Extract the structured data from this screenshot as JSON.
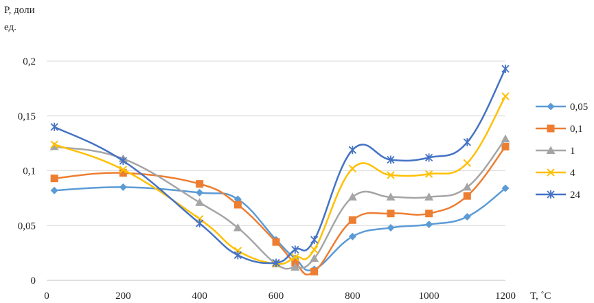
{
  "chart_data": {
    "type": "line",
    "title": "",
    "ylabel_line1": "P, доли",
    "ylabel_line2": "ед.",
    "xlabel": "T, ˚C",
    "xlim": [
      0,
      1200
    ],
    "ylim": [
      0,
      0.2
    ],
    "xticks": [
      0,
      200,
      400,
      600,
      800,
      1000,
      1200
    ],
    "xtick_labels": [
      "0",
      "200",
      "400",
      "600",
      "800",
      "1000",
      "1200"
    ],
    "yticks": [
      0,
      0.05,
      0.1,
      0.15,
      0.2
    ],
    "ytick_labels": [
      "0",
      "0,05",
      "0,1",
      "0,15",
      "0,2"
    ],
    "grid": "horizontal",
    "legend_position": "right",
    "series": [
      {
        "name": "0,05",
        "color": "#5B9BD5",
        "marker": "diamond",
        "x": [
          20,
          200,
          400,
          500,
          600,
          650,
          700,
          800,
          900,
          1000,
          1100,
          1200
        ],
        "y": [
          0.082,
          0.085,
          0.08,
          0.074,
          0.037,
          0.02,
          0.01,
          0.04,
          0.048,
          0.051,
          0.058,
          0.084
        ]
      },
      {
        "name": "0,1",
        "color": "#ED7D31",
        "marker": "square",
        "x": [
          20,
          200,
          400,
          500,
          600,
          650,
          700,
          800,
          900,
          1000,
          1100,
          1200
        ],
        "y": [
          0.093,
          0.098,
          0.088,
          0.069,
          0.035,
          0.016,
          0.008,
          0.055,
          0.061,
          0.061,
          0.077,
          0.122
        ]
      },
      {
        "name": "1",
        "color": "#A5A5A5",
        "marker": "triangle",
        "x": [
          20,
          200,
          400,
          500,
          600,
          650,
          700,
          800,
          900,
          1000,
          1100,
          1200
        ],
        "y": [
          0.122,
          0.111,
          0.071,
          0.048,
          0.015,
          0.012,
          0.02,
          0.076,
          0.076,
          0.076,
          0.085,
          0.129
        ]
      },
      {
        "name": "4",
        "color": "#FFC000",
        "marker": "x",
        "x": [
          20,
          200,
          400,
          500,
          600,
          650,
          700,
          800,
          900,
          1000,
          1100,
          1200
        ],
        "y": [
          0.124,
          0.101,
          0.056,
          0.027,
          0.015,
          0.021,
          0.028,
          0.102,
          0.096,
          0.097,
          0.107,
          0.168
        ]
      },
      {
        "name": "24",
        "color": "#4472C4",
        "marker": "star",
        "x": [
          20,
          200,
          400,
          500,
          600,
          650,
          700,
          800,
          900,
          1000,
          1100,
          1200
        ],
        "y": [
          0.14,
          0.109,
          0.052,
          0.023,
          0.016,
          0.028,
          0.037,
          0.119,
          0.11,
          0.112,
          0.126,
          0.193
        ]
      }
    ]
  }
}
